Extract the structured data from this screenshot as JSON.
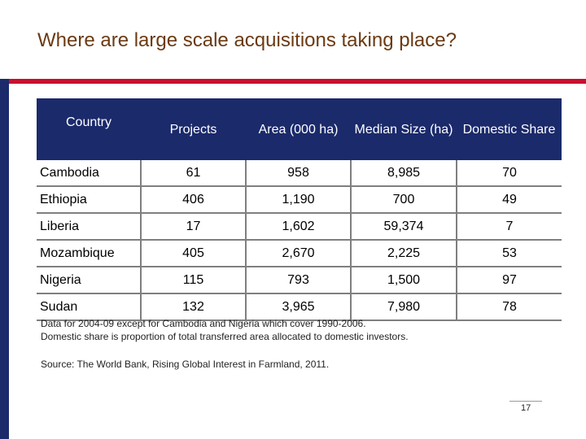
{
  "title": "Where are large scale acquisitions taking place?",
  "table": {
    "headers": [
      "Country",
      "Projects",
      "Area (000 ha)",
      "Median Size (ha)",
      "Domestic Share"
    ],
    "rows": [
      [
        "Cambodia",
        "61",
        "958",
        "8,985",
        "70"
      ],
      [
        "Ethiopia",
        "406",
        "1,190",
        "700",
        "49"
      ],
      [
        "Liberia",
        "17",
        "1,602",
        "59,374",
        "7"
      ],
      [
        "Mozambique",
        "405",
        "2,670",
        "2,225",
        "53"
      ],
      [
        "Nigeria",
        "115",
        "793",
        "1,500",
        "97"
      ],
      [
        "Sudan",
        "132",
        "3,965",
        "7,980",
        "78"
      ]
    ]
  },
  "notes": {
    "line1": "Data for 2004-09 except for Cambodia and Nigeria which cover 1990-2006.",
    "line2": "Domestic share is proportion of total transferred area allocated to domestic investors."
  },
  "source": "Source: The World Bank, Rising Global Interest in Farmland, 2011.",
  "page_number": "17",
  "colors": {
    "title": "#6b3a12",
    "header_bg": "#1b2a6b",
    "accent_rule": "#c8102e"
  }
}
